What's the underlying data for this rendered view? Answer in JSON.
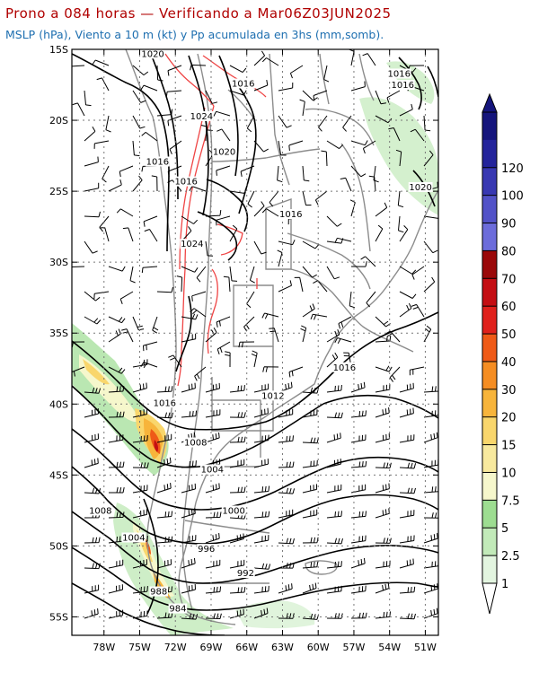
{
  "title": "Prono a 084 horas — Verificando a Mar06Z03JUN2025",
  "subtitle": "MSLP (hPa), Viento a 10 m (kt) y Pp acumulada en 3hs (mm,somb).",
  "map": {
    "lat_labels": [
      "15S",
      "20S",
      "25S",
      "30S",
      "35S",
      "40S",
      "45S",
      "50S",
      "55S"
    ],
    "lon_labels": [
      "78W",
      "75W",
      "72W",
      "69W",
      "66W",
      "63W",
      "60W",
      "57W",
      "54W",
      "51W"
    ],
    "isobar_labels": [
      {
        "text": "1020",
        "lon": -73.9,
        "lat": -15.4
      },
      {
        "text": "1016",
        "lon": -66.3,
        "lat": -17.5
      },
      {
        "text": "1024",
        "lon": -69.8,
        "lat": -19.8
      },
      {
        "text": "1020",
        "lon": -67.9,
        "lat": -22.3
      },
      {
        "text": "1016",
        "lon": -73.5,
        "lat": -23.0
      },
      {
        "text": "1016",
        "lon": -71.1,
        "lat": -24.4
      },
      {
        "text": "1016",
        "lon": -62.3,
        "lat": -26.7
      },
      {
        "text": "1024",
        "lon": -70.6,
        "lat": -28.8
      },
      {
        "text": "1016",
        "lon": -53.2,
        "lat": -16.8
      },
      {
        "text": "1016",
        "lon": -52.9,
        "lat": -17.6
      },
      {
        "text": "1020",
        "lon": -51.4,
        "lat": -24.8
      },
      {
        "text": "1016",
        "lon": -57.8,
        "lat": -37.5
      },
      {
        "text": "1012",
        "lon": -63.8,
        "lat": -39.5
      },
      {
        "text": "1016",
        "lon": -72.9,
        "lat": -40.0
      },
      {
        "text": "1008",
        "lon": -70.3,
        "lat": -42.8
      },
      {
        "text": "1004",
        "lon": -68.9,
        "lat": -44.7
      },
      {
        "text": "1000",
        "lon": -67.1,
        "lat": -47.6
      },
      {
        "text": "1008",
        "lon": -78.3,
        "lat": -47.6
      },
      {
        "text": "1004",
        "lon": -75.5,
        "lat": -49.5
      },
      {
        "text": "996",
        "lon": -69.4,
        "lat": -50.3
      },
      {
        "text": "992",
        "lon": -66.1,
        "lat": -52.0
      },
      {
        "text": "988",
        "lon": -73.4,
        "lat": -53.3
      },
      {
        "text": "984",
        "lon": -71.8,
        "lat": -54.5
      }
    ]
  },
  "colorbar": {
    "labels": [
      "1",
      "2.5",
      "5",
      "7.5",
      "10",
      "15",
      "20",
      "30",
      "40",
      "50",
      "60",
      "70",
      "80",
      "90",
      "100",
      "120"
    ],
    "colors": [
      "#e3f5e0",
      "#c2eab9",
      "#9ddd91",
      "#f6f7cc",
      "#f8e99e",
      "#f9d66c",
      "#f7b43b",
      "#f58d22",
      "#ef5a17",
      "#e0211c",
      "#c40e13",
      "#9a0809",
      "#6c6cdb",
      "#5252c8",
      "#3838b2",
      "#24249b",
      "#15157c"
    ]
  },
  "colors": {
    "title": "#b00000",
    "subtitle": "#1e6fb0",
    "isobar": "#000000",
    "terrain": "#ef4444",
    "border": "#8c8c8c"
  }
}
